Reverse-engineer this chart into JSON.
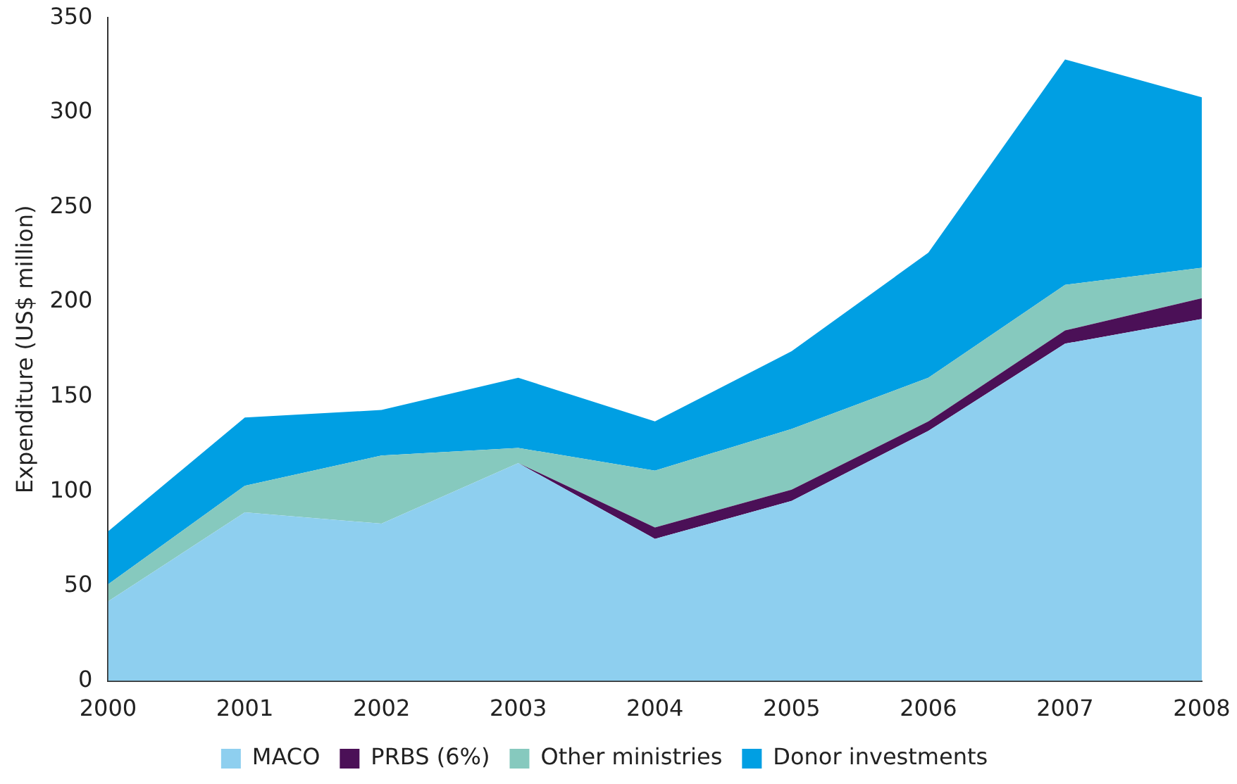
{
  "chart_data": {
    "type": "area",
    "stacked": true,
    "ylabel": "Expenditure (US$ million)",
    "categories": [
      "2000",
      "2001",
      "2002",
      "2003",
      "2004",
      "2005",
      "2006",
      "2007",
      "2008"
    ],
    "series": [
      {
        "name": "MACO",
        "color": "#8ecfef",
        "values": [
          42,
          89,
          83,
          115,
          75,
          95,
          132,
          178,
          191
        ]
      },
      {
        "name": "PRBS (6%)",
        "color": "#4b1057",
        "values": [
          0,
          0,
          0,
          0,
          6,
          6,
          5,
          7,
          11
        ]
      },
      {
        "name": "Other ministries",
        "color": "#86c9be",
        "values": [
          9,
          14,
          36,
          8,
          30,
          32,
          23,
          24,
          16
        ]
      },
      {
        "name": "Donor investments",
        "color": "#009fe3",
        "values": [
          28,
          36,
          24,
          37,
          26,
          41,
          66,
          119,
          90
        ]
      }
    ],
    "ylim": [
      0,
      350
    ],
    "yticks": [
      0,
      50,
      100,
      150,
      200,
      250,
      300,
      350
    ],
    "grid": false,
    "legend": "bottom"
  }
}
